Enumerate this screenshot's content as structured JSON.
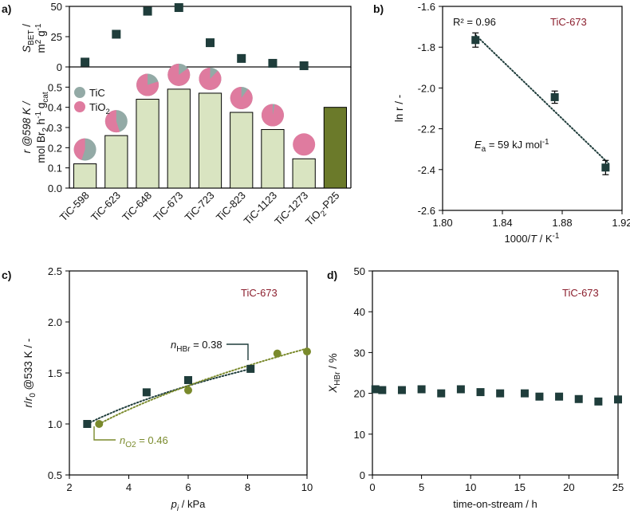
{
  "colors": {
    "square": "#1f3d3b",
    "olive": "#7a8a2c",
    "olive_dark": "#6b7a2a",
    "bar_light": "#d9e4c1",
    "tic": "#93aaa6",
    "tio2": "#df7b9f",
    "title_red": "#8b1e2d"
  },
  "panels": {
    "a": {
      "letter": "a)"
    },
    "b": {
      "letter": "b)"
    },
    "c": {
      "letter": "c)"
    },
    "d": {
      "letter": "d)"
    }
  },
  "chart_data": [
    {
      "id": "a_top",
      "type": "scatter",
      "ylabel_main": "S",
      "ylabel_sub": "BET",
      "ylabel_rest": " /",
      "ylabel_unit_main": "m",
      "ylabel_unit_sup1": "2",
      "ylabel_unit_mid": " g",
      "ylabel_unit_sup2": "-1",
      "ylim": [
        0,
        50
      ],
      "yticks": [
        0,
        25,
        50
      ],
      "categories": [
        "TiC-598",
        "TiC-623",
        "TiC-648",
        "TiC-673",
        "TiC-723",
        "TiC-823",
        "TiC-1123",
        "TiC-1273"
      ],
      "values": [
        4,
        27,
        46,
        49,
        20,
        7,
        3,
        1
      ]
    },
    {
      "id": "a_bottom",
      "type": "bar",
      "ylabel_line1": "r @598 K /",
      "ylabel_line2": "mol Br",
      "ylabel_line2_sub": "2",
      "ylabel_line2_rest": " h",
      "ylabel_line2_sup": "-1",
      "ylabel_line2_rest2": " g",
      "ylabel_line2_sub2": "cat",
      "ylim": [
        0,
        0.6
      ],
      "yticks": [
        "0.0",
        "0.1",
        "0.2",
        "0.3",
        "0.4",
        "0.5"
      ],
      "categories": [
        "TiC-598",
        "TiC-623",
        "TiC-648",
        "TiC-673",
        "TiC-723",
        "TiC-823",
        "TiC-1123",
        "TiC-1273",
        "TiO2-P25"
      ],
      "category_labels": [
        {
          "main": "TiC-598"
        },
        {
          "main": "TiC-623"
        },
        {
          "main": "TiC-648"
        },
        {
          "main": "TiC-673"
        },
        {
          "main": "TiC-723"
        },
        {
          "main": "TiC-823"
        },
        {
          "main": "TiC-1123"
        },
        {
          "main": "TiC-1273"
        },
        {
          "main": "TiO",
          "sub": "2",
          "rest": "-P25"
        }
      ],
      "values": [
        0.12,
        0.26,
        0.44,
        0.49,
        0.47,
        0.375,
        0.29,
        0.145,
        0.4
      ],
      "pie_tio2_fraction": [
        0.45,
        0.55,
        0.8,
        0.85,
        0.88,
        0.9,
        0.97,
        1.0
      ],
      "legend": [
        {
          "label": "TiC",
          "key": "tic"
        },
        {
          "label": "TiO",
          "sub": "2",
          "key": "tio2"
        }
      ]
    },
    {
      "id": "b",
      "type": "scatter",
      "title": "TiC-673",
      "annotation_r2": "R² = 0.96",
      "annotation_ea_main": "E",
      "annotation_ea_sub": "a",
      "annotation_ea_rest": " = 59 kJ mol",
      "annotation_ea_sup": "-1",
      "xlabel_pre": "1000/",
      "xlabel_var": "T",
      "xlabel_post": " / K",
      "xlabel_sup": "-1",
      "ylabel": "ln r / -",
      "xlim": [
        1.8,
        1.92
      ],
      "ylim": [
        -2.6,
        -1.6
      ],
      "xticks": [
        "1.80",
        "1.84",
        "1.88",
        "1.92"
      ],
      "yticks": [
        "-1.6",
        "-1.8",
        "-2.0",
        "-2.2",
        "-2.4",
        "-2.6"
      ],
      "x": [
        1.822,
        1.875,
        1.909
      ],
      "y": [
        -1.765,
        -2.045,
        -2.39
      ],
      "yerr": [
        0.035,
        0.03,
        0.035
      ],
      "fit": {
        "x": [
          1.822,
          1.911
        ],
        "y": [
          -1.74,
          -2.37
        ]
      }
    },
    {
      "id": "c",
      "type": "scatter",
      "title": "TiC-673",
      "ylabel": "r/r0 @533 K / -",
      "ylabel_p1": "r",
      "ylabel_p2": "/",
      "ylabel_p3": "r",
      "ylabel_p3_sub": "0",
      "ylabel_p4": " @533 K / -",
      "xlabel_var": "p",
      "xlabel_sub": "i",
      "xlabel_rest": " / kPa",
      "xlim": [
        2,
        10
      ],
      "ylim": [
        0.5,
        2.5
      ],
      "xticks": [
        "2",
        "4",
        "6",
        "8",
        "10"
      ],
      "yticks": [
        "0.5",
        "1.0",
        "1.5",
        "2.0",
        "2.5"
      ],
      "series": [
        {
          "name": "HBr",
          "marker": "square",
          "x": [
            2.6,
            4.6,
            6.0,
            8.1
          ],
          "y": [
            1.0,
            1.31,
            1.43,
            1.54
          ]
        },
        {
          "name": "O2",
          "marker": "circle",
          "x": [
            3.0,
            6.0,
            9.0,
            10.0
          ],
          "y": [
            1.0,
            1.33,
            1.69,
            1.71
          ]
        }
      ],
      "annotation_hbr": {
        "main": "n",
        "sub": "HBr",
        "rest": " = 0.38"
      },
      "annotation_o2": {
        "main": "n",
        "sub": "O2",
        "rest": " = 0.46"
      }
    },
    {
      "id": "d",
      "type": "scatter",
      "title": "TiC-673",
      "ylabel_main": "X",
      "ylabel_sub": "HBr",
      "ylabel_rest": " / %",
      "xlabel": "time-on-stream / h",
      "xlim": [
        0,
        25
      ],
      "ylim": [
        0,
        50
      ],
      "xticks": [
        "0",
        "5",
        "10",
        "15",
        "20",
        "25"
      ],
      "yticks": [
        "0",
        "10",
        "20",
        "30",
        "40",
        "50"
      ],
      "x": [
        0.3,
        1,
        3,
        5,
        7,
        9,
        11,
        13,
        15.5,
        17,
        19,
        21,
        23,
        25
      ],
      "y": [
        21,
        20.8,
        20.8,
        21,
        20,
        21,
        20.3,
        20,
        20,
        19.2,
        19.2,
        18.6,
        18,
        18.5
      ]
    }
  ]
}
